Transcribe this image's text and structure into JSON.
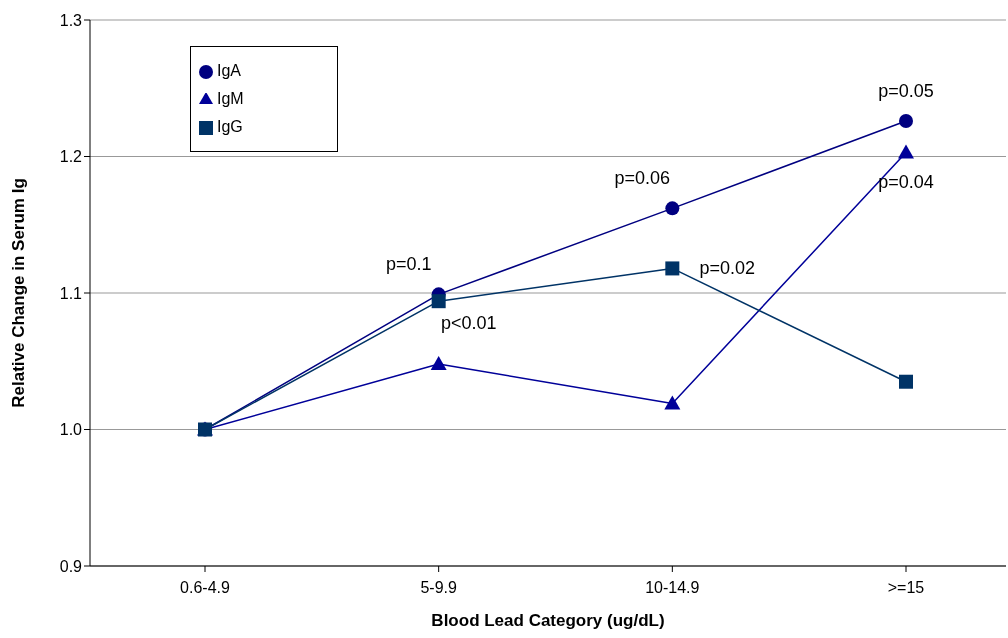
{
  "chart_data": {
    "type": "line",
    "xlabel": "Blood Lead Category (ug/dL)",
    "ylabel": "Relative Change in Serum Ig",
    "categories": [
      "0.6-4.9",
      "5-9.9",
      "10-14.9",
      ">=15"
    ],
    "series": [
      {
        "name": "IgA",
        "color": "#000080",
        "marker": "circle",
        "values": [
          1.0,
          1.099,
          1.162,
          1.226
        ]
      },
      {
        "name": "IgM",
        "color": "#000099",
        "marker": "triangle",
        "values": [
          1.0,
          1.048,
          1.019,
          1.203
        ]
      },
      {
        "name": "IgG",
        "color": "#003366",
        "marker": "square",
        "values": [
          1.0,
          1.094,
          1.118,
          1.035
        ]
      }
    ],
    "ylim": [
      0.9,
      1.3
    ],
    "yticks": [
      0.9,
      {
        "value": 1.0,
        "label": "1.0"
      },
      1.1,
      1.2,
      1.3
    ],
    "grid": "y",
    "legend": "top left",
    "annotations": [
      {
        "text": "p=0.1",
        "x": "5-9.9",
        "y": 1.099
      },
      {
        "text": "p<0.01",
        "x": "5-9.9",
        "y": 1.094
      },
      {
        "text": "p=0.06",
        "x": "10-14.9",
        "y": 1.162
      },
      {
        "text": "p=0.02",
        "x": "10-14.9",
        "y": 1.118
      },
      {
        "text": "p=0.05",
        "x": ">=15",
        "y": 1.226
      },
      {
        "text": "p=0.04",
        "x": ">=15",
        "y": 1.203
      }
    ]
  }
}
